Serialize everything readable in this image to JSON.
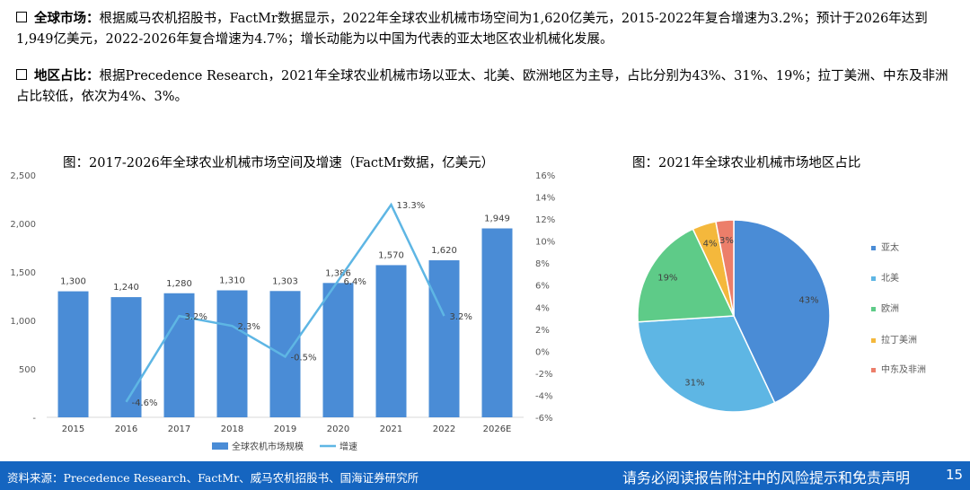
{
  "bullets": [
    {
      "key": "全球市场：",
      "text": "根据威马农机招股书，FactMr数据显示，2022年全球农业机械市场空间为1,620亿美元，2015-2022年复合增速为3.2%；预计于2026年达到1,949亿美元，2022-2026年复合增速为4.7%；增长动能为以中国为代表的亚太地区农业机械化发展。"
    },
    {
      "key": "地区占比：",
      "text": "根据Precedence Research，2021年全球农业机械市场以亚太、北美、欧洲地区为主导，占比分别为43%、31%、19%；拉丁美洲、中东及非洲占比较低，依次为4%、3%。"
    }
  ],
  "chart_data": [
    {
      "type": "bar",
      "title": "图：2017-2026年全球农业机械市场空间及增速（FactMr数据，亿美元）",
      "categories": [
        "2015",
        "2016",
        "2017",
        "2018",
        "2019",
        "2020",
        "2021",
        "2022",
        "2026E"
      ],
      "series": [
        {
          "name": "全球农机市场规模",
          "type": "bar",
          "axis": "left",
          "color": "#4a8cd6",
          "values": [
            1300,
            1240,
            1280,
            1310,
            1303,
            1386,
            1570,
            1620,
            1949
          ],
          "labels": [
            "1,300",
            "1,240",
            "1,280",
            "1,310",
            "1,303",
            "1,386",
            "1,570",
            "1,620",
            "1,949"
          ]
        },
        {
          "name": "增速",
          "type": "line",
          "axis": "right",
          "color": "#5eb6e4",
          "values": [
            null,
            -4.6,
            3.2,
            2.3,
            -0.5,
            6.4,
            13.3,
            3.2,
            null
          ],
          "labels": [
            "",
            "-4.6%",
            "3.2%",
            "2.3%",
            "-0.5%",
            "6.4%",
            "13.3%",
            "3.2%",
            ""
          ]
        }
      ],
      "y_left": {
        "min": 0,
        "max": 2500,
        "ticks": [
          0,
          500,
          1000,
          1500,
          2000,
          2500
        ],
        "tick_labels": [
          "-",
          "500",
          "1,000",
          "1,500",
          "2,000",
          "2,500"
        ]
      },
      "y_right": {
        "min": -6,
        "max": 16,
        "ticks": [
          -6,
          -4,
          -2,
          0,
          2,
          4,
          6,
          8,
          10,
          12,
          14,
          16
        ],
        "tick_labels": [
          "-6%",
          "-4%",
          "-2%",
          "0%",
          "2%",
          "4%",
          "6%",
          "8%",
          "10%",
          "12%",
          "14%",
          "16%"
        ]
      },
      "legend": "bottom",
      "grid": false
    },
    {
      "type": "pie",
      "title": "图：2021年全球农业机械市场地区占比",
      "slices": [
        {
          "name": "亚太",
          "value": 43,
          "label": "43%",
          "color": "#4a8cd6"
        },
        {
          "name": "北美",
          "value": 31,
          "label": "31%",
          "color": "#5eb6e4"
        },
        {
          "name": "欧洲",
          "value": 19,
          "label": "19%",
          "color": "#5ecb88"
        },
        {
          "name": "拉丁美洲",
          "value": 4,
          "label": "4%",
          "color": "#f4b83c"
        },
        {
          "name": "中东及非洲",
          "value": 3,
          "label": "3%",
          "color": "#ec7e6a"
        }
      ],
      "legend": "right"
    }
  ],
  "footer": {
    "source": "资料来源：Precedence Research、FactMr、威马农机招股书、国海证券研究所",
    "disclaimer": "请务必阅读报告附注中的风险提示和免责声明",
    "page": "15"
  }
}
